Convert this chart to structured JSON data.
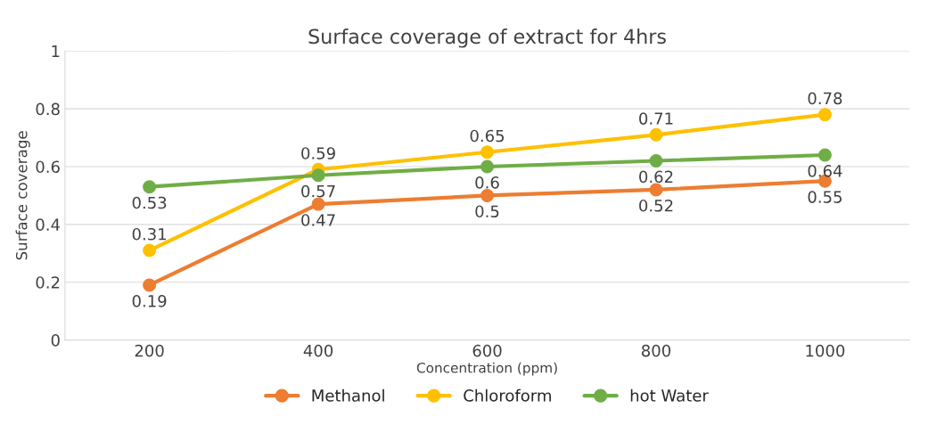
{
  "chart_data": {
    "type": "line",
    "title": "Surface coverage of extract for 4hrs",
    "xlabel": "Concentration (ppm)",
    "ylabel": "Surface coverage",
    "categories": [
      "200",
      "400",
      "600",
      "800",
      "1000"
    ],
    "series": [
      {
        "name": "Methanol",
        "color": "#ed7d31",
        "values": [
          0.19,
          0.47,
          0.5,
          0.52,
          0.55
        ]
      },
      {
        "name": "Chloroform",
        "color": "#ffc000",
        "values": [
          0.31,
          0.59,
          0.65,
          0.71,
          0.78
        ]
      },
      {
        "name": "hot Water",
        "color": "#70ad47",
        "values": [
          0.53,
          0.57,
          0.6,
          0.62,
          0.64
        ]
      }
    ],
    "ylim": [
      0,
      1
    ],
    "yticks": [
      0,
      0.2,
      0.4,
      0.6,
      0.8,
      1
    ],
    "grid": "y",
    "legend": "bottom",
    "marker": "circle",
    "line_style": "solid",
    "data_labels": true
  }
}
